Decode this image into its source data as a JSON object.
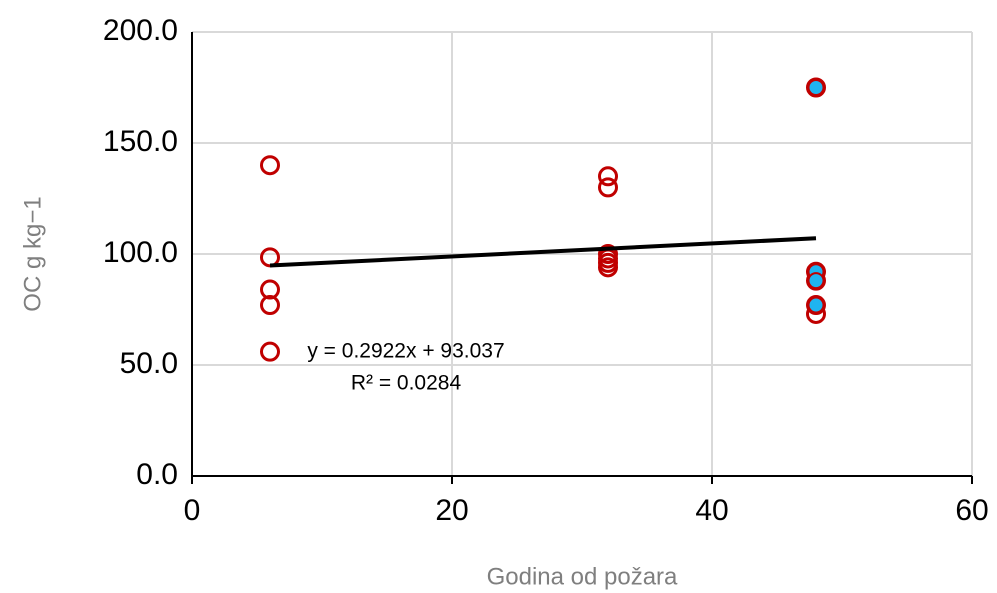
{
  "chart_data": {
    "type": "scatter",
    "x_label": "Godina od požara",
    "y_label": "OC g kg−1",
    "xlim": [
      0,
      60
    ],
    "xticks": [
      0,
      20,
      40,
      60
    ],
    "ylim": [
      0,
      200
    ],
    "yticks": [
      {
        "value": 0,
        "label": "0.0"
      },
      {
        "value": 50,
        "label": "50.0"
      },
      {
        "value": 100,
        "label": "100.0"
      },
      {
        "value": 150,
        "label": "150.0"
      },
      {
        "value": 200,
        "label": "200.0"
      }
    ],
    "grid": true,
    "series": [
      {
        "color": "#c00000",
        "filled": false,
        "x": [
          6,
          6,
          6,
          6,
          6,
          32,
          32,
          32,
          32,
          32,
          32,
          48,
          48,
          48,
          48,
          48
        ],
        "values": [
          140,
          98.5,
          84,
          77,
          56,
          135,
          130,
          100,
          98,
          96,
          94,
          175,
          92,
          88,
          77,
          73
        ]
      },
      {
        "color": "#1fb4f0",
        "filled": true,
        "x": [
          48,
          48,
          48,
          48
        ],
        "values": [
          175,
          92,
          88,
          77
        ]
      }
    ],
    "trendline": {
      "color": "#000000",
      "x": [
        6,
        48
      ],
      "values": [
        94.8,
        107.1
      ]
    },
    "annotations": [
      "y = 0.2922x + 93.037",
      "R² = 0.0284"
    ]
  }
}
